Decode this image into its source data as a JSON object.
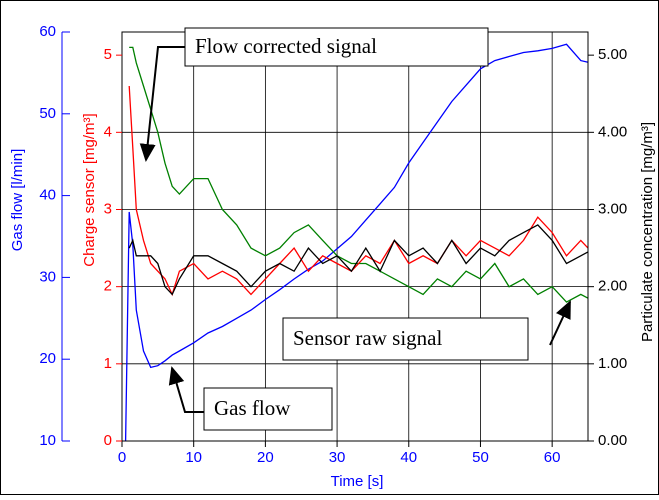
{
  "chart_data": {
    "type": "line",
    "xlabel": "Time [s]",
    "ylabel": "Gas flow [l/min]",
    "y3label": "Charge sensor [mg/m³]",
    "y2label": "Particulate concentration [mg/m³]",
    "x": [
      0.5,
      1,
      1.5,
      2,
      3,
      4,
      5,
      6,
      7,
      8,
      10,
      12,
      14,
      16,
      18,
      20,
      22,
      24,
      26,
      28,
      30,
      32,
      34,
      36,
      38,
      40,
      42,
      44,
      46,
      48,
      50,
      52,
      54,
      56,
      58,
      60,
      62,
      64,
      65
    ],
    "xlim": [
      0,
      65
    ],
    "xticks": [
      0,
      10,
      20,
      30,
      40,
      50,
      60
    ],
    "ylim": [
      10,
      60
    ],
    "yticks": [
      10,
      20,
      30,
      40,
      50,
      60
    ],
    "y3lim": [
      0,
      5.3
    ],
    "y3ticks": [
      0,
      1,
      2,
      3,
      4,
      5
    ],
    "y2lim": [
      0,
      5.3
    ],
    "y2ticks": [
      {
        "value": 0,
        "label": "0.00"
      },
      {
        "value": 1,
        "label": "1.00"
      },
      {
        "value": 2,
        "label": "2.00"
      },
      {
        "value": 3,
        "label": "3.00"
      },
      {
        "value": 4,
        "label": "4.00"
      },
      {
        "value": 5,
        "label": "5.00"
      }
    ],
    "grid": true,
    "series": [
      {
        "color": "#0000ff",
        "axis": "y",
        "values": [
          10,
          38,
          34,
          26,
          21,
          19,
          19.2,
          19.8,
          20.5,
          21,
          22,
          23.2,
          24,
          25,
          26,
          27.3,
          28.5,
          29.8,
          31,
          32,
          33.5,
          35,
          37,
          39,
          41,
          44,
          46.5,
          49,
          51.5,
          53.5,
          55.5,
          56.5,
          57,
          57.5,
          57.7,
          58,
          58.5,
          56.5,
          56.3
        ]
      },
      {
        "color": "#008000",
        "axis": "y2",
        "values": [
          null,
          5.1,
          5.1,
          4.9,
          4.6,
          4.3,
          4.0,
          3.6,
          3.3,
          3.2,
          3.4,
          3.4,
          3.0,
          2.8,
          2.5,
          2.4,
          2.5,
          2.7,
          2.8,
          2.6,
          2.4,
          2.3,
          2.3,
          2.2,
          2.1,
          2.0,
          1.9,
          2.1,
          2.0,
          2.2,
          2.1,
          2.3,
          2.0,
          2.1,
          1.9,
          2.0,
          1.8,
          1.9,
          1.85
        ]
      },
      {
        "color": "#ff0000",
        "axis": "y3",
        "values": [
          null,
          4.6,
          3.8,
          3.0,
          2.6,
          2.3,
          2.2,
          2.1,
          1.9,
          2.2,
          2.3,
          2.1,
          2.2,
          2.1,
          1.9,
          2.1,
          2.3,
          2.5,
          2.2,
          2.4,
          2.3,
          2.2,
          2.4,
          2.3,
          2.6,
          2.3,
          2.4,
          2.3,
          2.6,
          2.4,
          2.6,
          2.5,
          2.4,
          2.6,
          2.9,
          2.7,
          2.4,
          2.6,
          2.5
        ]
      },
      {
        "color": "#000000",
        "axis": "y2",
        "values": [
          null,
          2.5,
          2.6,
          2.4,
          2.4,
          2.4,
          2.3,
          2.0,
          1.9,
          2.1,
          2.4,
          2.4,
          2.3,
          2.2,
          2.0,
          2.2,
          2.3,
          2.2,
          2.5,
          2.3,
          2.4,
          2.2,
          2.5,
          2.2,
          2.6,
          2.4,
          2.5,
          2.3,
          2.6,
          2.3,
          2.5,
          2.4,
          2.6,
          2.7,
          2.8,
          2.6,
          2.3,
          2.4,
          2.45
        ]
      }
    ],
    "annotations": [
      {
        "text": "Flow corrected signal"
      },
      {
        "text": "Sensor raw signal"
      },
      {
        "text": "Gas flow"
      }
    ]
  }
}
